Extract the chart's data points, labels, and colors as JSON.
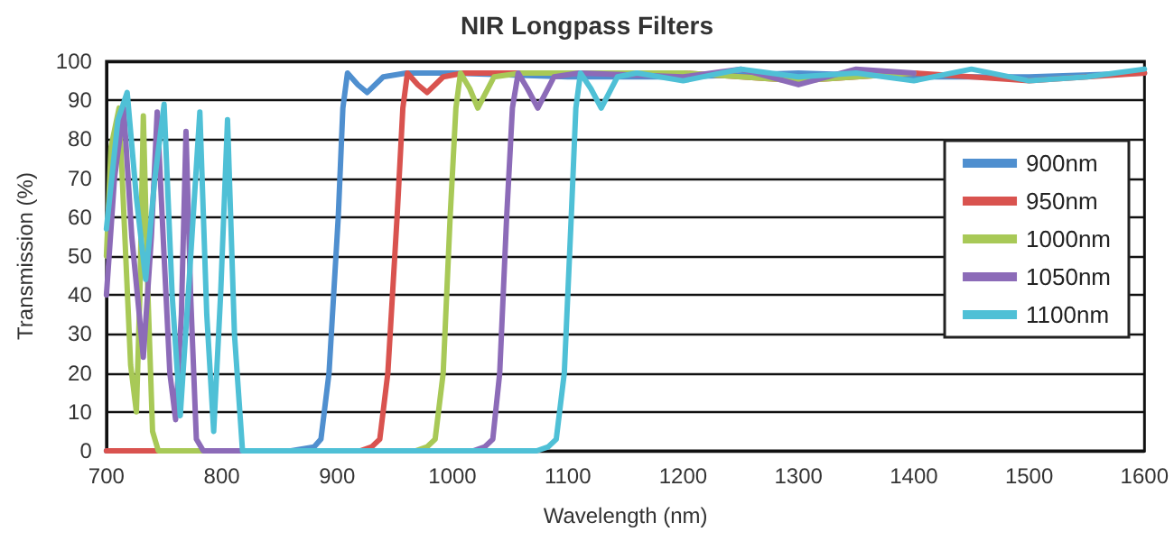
{
  "chart_data": {
    "type": "line",
    "title": "NIR Longpass Filters",
    "xlabel": "Wavelength (nm)",
    "ylabel": "Transmission (%)",
    "xlim": [
      700,
      1600
    ],
    "xticks": [
      700,
      800,
      900,
      1000,
      1100,
      1200,
      1300,
      1400,
      1500,
      1600
    ],
    "ylim": [
      0,
      100
    ],
    "yticks": [
      0,
      10,
      20,
      30,
      40,
      50,
      60,
      70,
      80,
      90,
      100
    ],
    "grid": "y",
    "legend": "right",
    "series": [
      {
        "name": "900nm",
        "color": "#4f8fcf",
        "x": [
          700,
          860,
          880,
          886,
          893,
          901,
          905,
          909,
          918,
          926,
          940,
          960,
          1000,
          1100,
          1200,
          1300,
          1400,
          1500,
          1600
        ],
        "values": [
          0,
          0,
          1,
          3,
          20,
          60,
          88,
          97,
          94,
          92,
          96,
          97,
          97,
          96,
          96,
          97,
          96,
          96,
          97
        ]
      },
      {
        "name": "950nm",
        "color": "#d9534f",
        "x": [
          700,
          920,
          930,
          937,
          944,
          952,
          957,
          961,
          970,
          978,
          992,
          1010,
          1100,
          1200,
          1300,
          1400,
          1500,
          1600
        ],
        "values": [
          0,
          0,
          1,
          3,
          20,
          60,
          88,
          97,
          94,
          92,
          96,
          97,
          97,
          97,
          95,
          97,
          95,
          97
        ]
      },
      {
        "name": "1000nm",
        "color": "#a8c957",
        "x": [
          700,
          704,
          711,
          716,
          721,
          726,
          729,
          732,
          736,
          740,
          745,
          968,
          978,
          985,
          992,
          998,
          1003,
          1007,
          1015,
          1022,
          1036,
          1060,
          1100,
          1200,
          1300,
          1400
        ],
        "values": [
          50,
          78,
          88,
          55,
          22,
          10,
          40,
          86,
          40,
          5,
          0,
          0,
          1,
          3,
          20,
          60,
          88,
          97,
          93,
          88,
          96,
          97,
          97,
          97,
          95,
          97
        ]
      },
      {
        "name": "1050nm",
        "color": "#8c6bb8",
        "x": [
          700,
          707,
          715,
          722,
          732,
          739,
          744,
          750,
          755,
          760,
          765,
          769,
          773,
          778,
          784,
          1018,
          1028,
          1035,
          1041,
          1047,
          1052,
          1057,
          1065,
          1074,
          1088,
          1110,
          1200,
          1250,
          1300,
          1350,
          1400
        ],
        "values": [
          40,
          70,
          88,
          55,
          24,
          55,
          87,
          50,
          20,
          8,
          35,
          82,
          40,
          3,
          0,
          0,
          1,
          3,
          20,
          60,
          88,
          97,
          93,
          88,
          96,
          97,
          96,
          98,
          94,
          98,
          97
        ]
      },
      {
        "name": "1100nm",
        "color": "#4fc0d6",
        "x": [
          700,
          710,
          718,
          726,
          734,
          742,
          750,
          757,
          764,
          772,
          781,
          787,
          793,
          799,
          805,
          811,
          818,
          1073,
          1083,
          1090,
          1097,
          1103,
          1107,
          1111,
          1120,
          1129,
          1143,
          1160,
          1200,
          1250,
          1300,
          1350,
          1400,
          1450,
          1500,
          1550,
          1600
        ],
        "values": [
          57,
          85,
          92,
          65,
          44,
          70,
          89,
          40,
          9,
          45,
          87,
          35,
          5,
          40,
          85,
          30,
          0,
          0,
          1,
          3,
          20,
          60,
          88,
          97,
          93,
          88,
          96,
          97,
          95,
          98,
          96,
          97,
          95,
          98,
          95,
          96,
          98
        ]
      }
    ]
  }
}
